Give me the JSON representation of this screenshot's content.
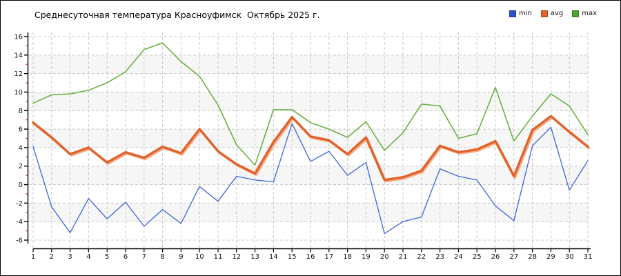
{
  "header": {
    "title": "Среднесуточная температура Красноуфимск  Октябрь 2025 г."
  },
  "legend": {
    "items": [
      {
        "label": "min",
        "color": "#2a4fd4"
      },
      {
        "label": "avg",
        "color": "#e2622b"
      },
      {
        "label": "max",
        "color": "#4ea52e"
      }
    ]
  },
  "chart_data": {
    "type": "line",
    "title": "Среднесуточная температура Красноуфимск  Октябрь 2025 г.",
    "xlabel": "",
    "ylabel": "",
    "x": [
      1,
      2,
      3,
      4,
      5,
      6,
      7,
      8,
      9,
      10,
      11,
      12,
      13,
      14,
      15,
      16,
      17,
      18,
      19,
      20,
      21,
      22,
      23,
      24,
      25,
      26,
      27,
      28,
      29,
      30,
      31
    ],
    "xticks": [
      1,
      2,
      3,
      4,
      5,
      6,
      7,
      8,
      9,
      10,
      11,
      12,
      13,
      14,
      15,
      16,
      17,
      18,
      19,
      20,
      21,
      22,
      23,
      24,
      25,
      26,
      27,
      28,
      29,
      30,
      31
    ],
    "yticks": [
      16,
      14,
      12,
      10,
      8,
      6,
      4,
      2,
      0,
      -2,
      -4,
      -6
    ],
    "ylim": [
      -6,
      16
    ],
    "grid": true,
    "legend_position": "top-right",
    "band_color": "#f6f6f6",
    "grid_color": "#c9c9c9",
    "axis_color": "#000000",
    "minor_tick_color": "#cc2222",
    "series": [
      {
        "name": "max",
        "color": "#6cb043",
        "width": 1.6,
        "values": [
          8.8,
          9.7,
          9.8,
          10.2,
          11.0,
          12.2,
          14.6,
          15.3,
          13.3,
          11.7,
          8.6,
          4.3,
          2.1,
          8.1,
          8.1,
          6.7,
          6.0,
          5.1,
          6.8,
          3.7,
          5.6,
          8.7,
          8.5,
          5.0,
          5.5,
          10.5,
          4.7,
          7.4,
          9.8,
          8.5,
          5.4
        ]
      },
      {
        "name": "min",
        "color": "#3e64d8",
        "width": 1.3,
        "values": [
          4.1,
          -2.4,
          -5.2,
          -1.5,
          -3.7,
          -1.9,
          -4.5,
          -2.7,
          -4.2,
          -0.2,
          -1.8,
          0.9,
          0.5,
          0.3,
          6.6,
          2.5,
          3.6,
          1.0,
          2.4,
          -5.3,
          -4.0,
          -3.5,
          1.7,
          0.9,
          0.5,
          -2.3,
          -3.9,
          4.2,
          6.2,
          -0.6,
          2.6
        ]
      },
      {
        "name": "avg",
        "color": "#e2622b",
        "width": 3.4,
        "shadow_color": "#f4ad85",
        "values": [
          6.7,
          5.1,
          3.3,
          4.0,
          2.4,
          3.5,
          2.9,
          4.1,
          3.4,
          6.0,
          3.6,
          2.2,
          1.2,
          4.6,
          7.3,
          5.2,
          4.8,
          3.3,
          5.1,
          0.5,
          0.8,
          1.5,
          4.2,
          3.5,
          3.8,
          4.7,
          0.9,
          5.9,
          7.4,
          5.7,
          4.1
        ]
      }
    ]
  }
}
